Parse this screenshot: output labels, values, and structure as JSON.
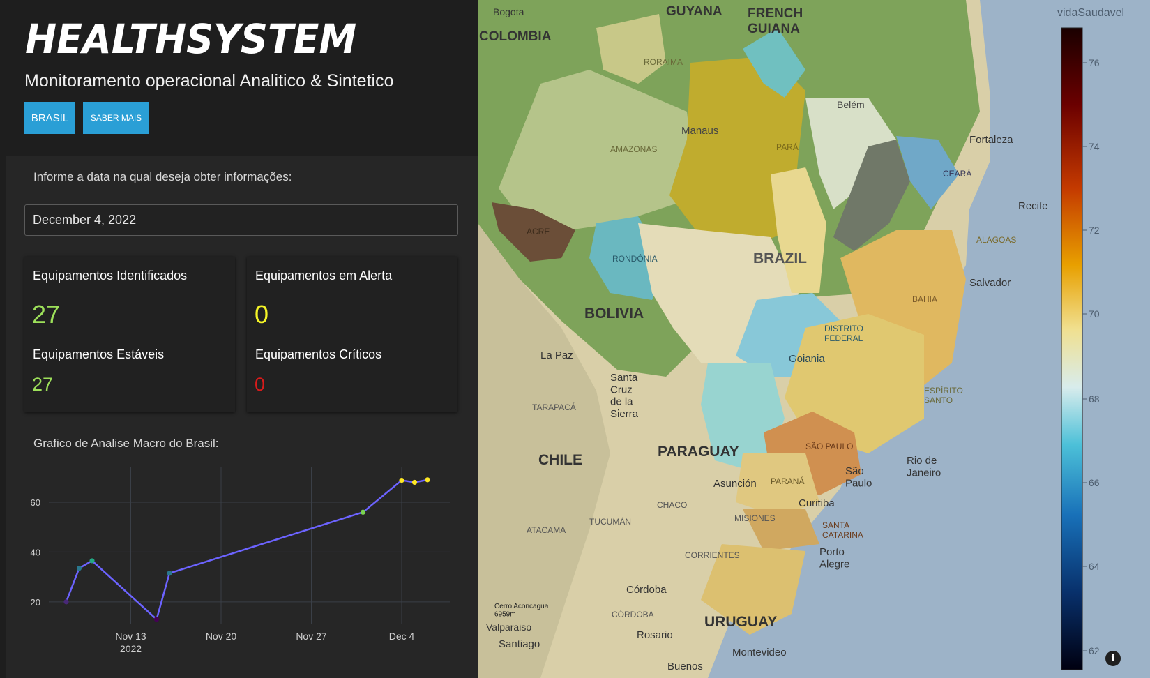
{
  "header": {
    "brand": "HEALTHSYSTEM",
    "subtitle": "Monitoramento operacional Analitico & Sintetico",
    "buttons": {
      "brasil": "BRASIL",
      "saber_mais": "SABER MAIS"
    }
  },
  "date_picker": {
    "label": "Informe a data na qual deseja obter informações:",
    "value": "December 4, 2022"
  },
  "stats": {
    "identificados": {
      "label": "Equipamentos Identificados",
      "value": "27",
      "color": "#9de05a"
    },
    "alerta": {
      "label": "Equipamentos em Alerta",
      "value": "0",
      "color": "#f5f527"
    },
    "estaveis": {
      "label": "Equipamentos Estáveis",
      "value": "27",
      "color": "#9de05a"
    },
    "criticos": {
      "label": "Equipamentos Críticos",
      "value": "0",
      "color": "#d81b1b"
    }
  },
  "chart_label": "Grafico de Analise Macro do Brasil:",
  "chart_data": {
    "type": "line",
    "x": [
      "2022-11-08",
      "2022-11-09",
      "2022-11-10",
      "2022-11-15",
      "2022-11-16",
      "2022-12-01",
      "2022-12-04",
      "2022-12-05",
      "2022-12-06"
    ],
    "y": [
      20,
      33.5,
      36.5,
      13,
      31.5,
      56,
      68.8,
      68,
      69
    ],
    "ylim": [
      11,
      74
    ],
    "yticks": [
      "20",
      "40",
      "60"
    ],
    "xticks": [
      "Nov 13",
      "Nov 20",
      "Nov 27",
      "Dec 4"
    ],
    "xtick_sublabel": "2022",
    "line_color": "#6c63ff",
    "grid": true
  },
  "map": {
    "colorbar": {
      "title": "vidaSaudavel",
      "ticks": [
        "76",
        "74",
        "72",
        "70",
        "68",
        "66",
        "64",
        "62"
      ]
    },
    "labels": {
      "bogota": "Bogota",
      "guyana": "GUYANA",
      "french_guiana": "FRENCH\nGUIANA",
      "colombia": "COLOMBIA",
      "roraima": "RORAIMA",
      "manaus": "Manaus",
      "amazonas": "AMAZONAS",
      "para": "PARÁ",
      "belem": "Belém",
      "fortaleza": "Fortaleza",
      "ceara": "CEARÁ",
      "recife": "Recife",
      "alagoas": "ALAGOAS",
      "acre": "ACRE",
      "rondonia": "RONDÔNIA",
      "brazil": "BRAZIL",
      "salvador": "Salvador",
      "bahia": "BAHIA",
      "bolivia": "BOLIVIA",
      "distrito_federal": "DISTRITO\nFEDERAL",
      "goiania": "Goiania",
      "la_paz": "La Paz",
      "santa_cruz": "Santa\nCruz\nde la\nSierra",
      "tarapaca": "TARAPACÁ",
      "espirito_santo": "ESPÍRITO\nSANTO",
      "sao_paulo_state": "SÃO PAULO",
      "sao_paulo_city": "São\nPaulo",
      "rio": "Rio de\nJaneiro",
      "chile": "CHILE",
      "paraguay": "PARAGUAY",
      "asuncion": "Asunción",
      "parana": "PARANÁ",
      "curitiba": "Curitiba",
      "chaco": "CHACO",
      "misiones": "MISIONES",
      "santa_catarina": "SANTA\nCATARINA",
      "tucuman": "TUCUMÁN",
      "atacama": "ATACAMA",
      "corrientes": "CORRIENTES",
      "porto_alegre": "Porto\nAlegre",
      "cordoba_city": "Córdoba",
      "cordoba_prov": "CÓRDOBA",
      "uruguay": "URUGUAY",
      "cerro": "Cerro Aconcagua\n6959m",
      "valparaiso": "Valparaiso",
      "santiago": "Santiago",
      "rosario": "Rosario",
      "montevideo": "Montevideo",
      "buenos": "Buenos"
    },
    "info_icon": "i"
  }
}
